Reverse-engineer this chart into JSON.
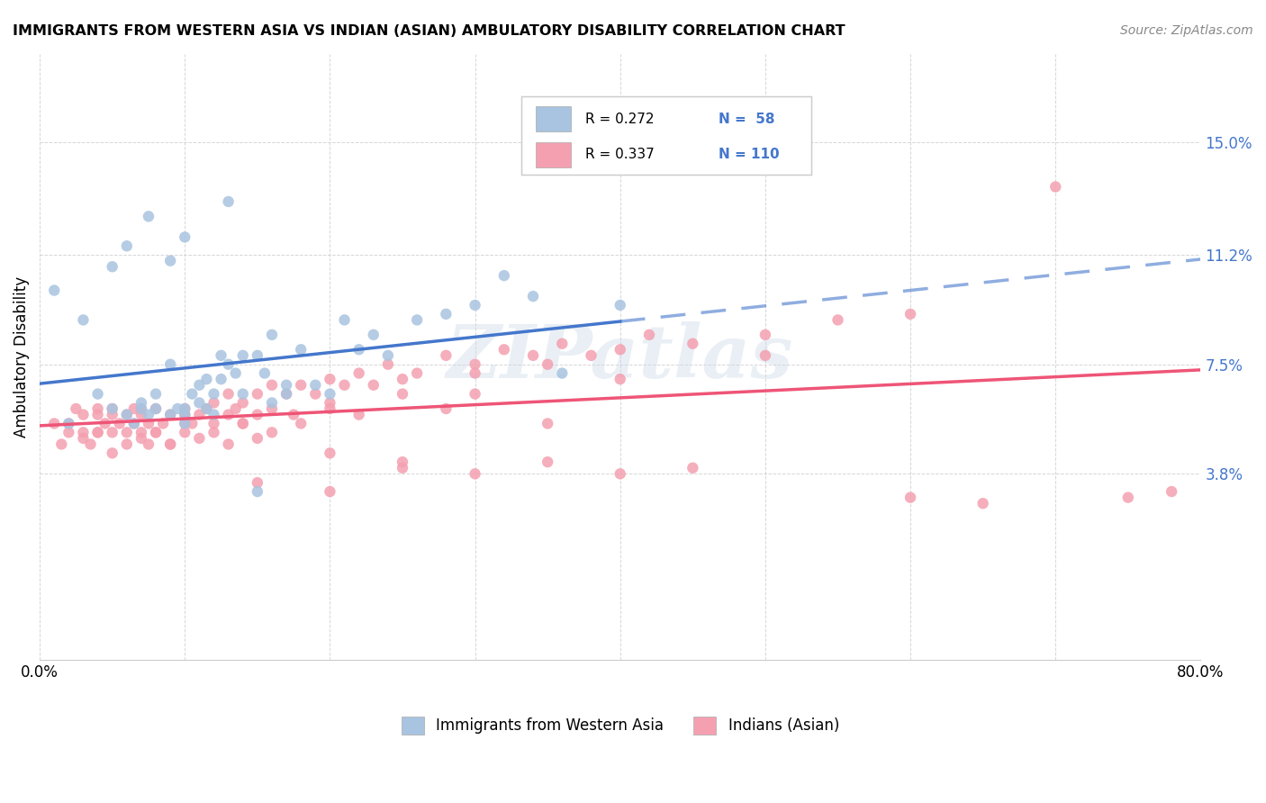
{
  "title": "IMMIGRANTS FROM WESTERN ASIA VS INDIAN (ASIAN) AMBULATORY DISABILITY CORRELATION CHART",
  "source": "Source: ZipAtlas.com",
  "ylabel": "Ambulatory Disability",
  "xlim": [
    0.0,
    0.8
  ],
  "ytick_positions": [
    0.038,
    0.075,
    0.112,
    0.15
  ],
  "ytick_labels": [
    "3.8%",
    "7.5%",
    "11.2%",
    "15.0%"
  ],
  "legend_labels": [
    "Immigrants from Western Asia",
    "Indians (Asian)"
  ],
  "blue_R": "R = 0.272",
  "blue_N": "N =  58",
  "pink_R": "R = 0.337",
  "pink_N": "N = 110",
  "blue_color": "#a8c4e0",
  "pink_color": "#f4a0b0",
  "blue_line_color": "#4477cc",
  "pink_line_color": "#ee5577",
  "watermark": "ZIPatlas",
  "blue_scatter_x": [
    0.02,
    0.04,
    0.05,
    0.06,
    0.065,
    0.07,
    0.07,
    0.075,
    0.08,
    0.08,
    0.09,
    0.09,
    0.095,
    0.1,
    0.1,
    0.1,
    0.105,
    0.11,
    0.11,
    0.115,
    0.115,
    0.12,
    0.12,
    0.125,
    0.125,
    0.13,
    0.135,
    0.14,
    0.14,
    0.15,
    0.155,
    0.16,
    0.16,
    0.17,
    0.18,
    0.19,
    0.2,
    0.21,
    0.22,
    0.23,
    0.24,
    0.26,
    0.28,
    0.3,
    0.32,
    0.34,
    0.36,
    0.4,
    0.01,
    0.03,
    0.05,
    0.06,
    0.075,
    0.09,
    0.1,
    0.13,
    0.15,
    0.17
  ],
  "blue_scatter_y": [
    0.055,
    0.065,
    0.06,
    0.058,
    0.055,
    0.06,
    0.062,
    0.058,
    0.06,
    0.065,
    0.058,
    0.075,
    0.06,
    0.055,
    0.058,
    0.06,
    0.065,
    0.062,
    0.068,
    0.07,
    0.06,
    0.065,
    0.058,
    0.07,
    0.078,
    0.075,
    0.072,
    0.078,
    0.065,
    0.078,
    0.072,
    0.085,
    0.062,
    0.068,
    0.08,
    0.068,
    0.065,
    0.09,
    0.08,
    0.085,
    0.078,
    0.09,
    0.092,
    0.095,
    0.105,
    0.098,
    0.072,
    0.095,
    0.1,
    0.09,
    0.108,
    0.115,
    0.125,
    0.11,
    0.118,
    0.13,
    0.032,
    0.065
  ],
  "pink_scatter_x": [
    0.01,
    0.02,
    0.025,
    0.03,
    0.03,
    0.04,
    0.04,
    0.04,
    0.045,
    0.05,
    0.05,
    0.05,
    0.055,
    0.06,
    0.06,
    0.065,
    0.065,
    0.07,
    0.07,
    0.07,
    0.075,
    0.075,
    0.08,
    0.08,
    0.085,
    0.09,
    0.09,
    0.1,
    0.1,
    0.1,
    0.105,
    0.11,
    0.115,
    0.12,
    0.12,
    0.13,
    0.13,
    0.135,
    0.14,
    0.14,
    0.15,
    0.15,
    0.16,
    0.16,
    0.17,
    0.175,
    0.18,
    0.19,
    0.2,
    0.2,
    0.21,
    0.22,
    0.23,
    0.24,
    0.25,
    0.26,
    0.28,
    0.3,
    0.32,
    0.34,
    0.36,
    0.38,
    0.4,
    0.42,
    0.45,
    0.5,
    0.55,
    0.6,
    0.3,
    0.35,
    0.4,
    0.5,
    0.015,
    0.02,
    0.03,
    0.035,
    0.04,
    0.05,
    0.06,
    0.07,
    0.08,
    0.09,
    0.1,
    0.11,
    0.12,
    0.13,
    0.14,
    0.15,
    0.16,
    0.18,
    0.2,
    0.22,
    0.25,
    0.28,
    0.3,
    0.25,
    0.35,
    0.4,
    0.45,
    0.7,
    0.65,
    0.75,
    0.78,
    0.6,
    0.2,
    0.25,
    0.15,
    0.2,
    0.3,
    0.35
  ],
  "pink_scatter_y": [
    0.055,
    0.055,
    0.06,
    0.058,
    0.052,
    0.06,
    0.058,
    0.052,
    0.055,
    0.058,
    0.052,
    0.06,
    0.055,
    0.058,
    0.052,
    0.06,
    0.055,
    0.058,
    0.052,
    0.06,
    0.055,
    0.048,
    0.06,
    0.052,
    0.055,
    0.058,
    0.048,
    0.058,
    0.052,
    0.06,
    0.055,
    0.058,
    0.06,
    0.062,
    0.055,
    0.065,
    0.058,
    0.06,
    0.062,
    0.055,
    0.065,
    0.058,
    0.068,
    0.06,
    0.065,
    0.058,
    0.068,
    0.065,
    0.07,
    0.062,
    0.068,
    0.072,
    0.068,
    0.075,
    0.07,
    0.072,
    0.078,
    0.075,
    0.08,
    0.078,
    0.082,
    0.078,
    0.08,
    0.085,
    0.082,
    0.085,
    0.09,
    0.092,
    0.072,
    0.075,
    0.07,
    0.078,
    0.048,
    0.052,
    0.05,
    0.048,
    0.052,
    0.045,
    0.048,
    0.05,
    0.052,
    0.048,
    0.055,
    0.05,
    0.052,
    0.048,
    0.055,
    0.05,
    0.052,
    0.055,
    0.06,
    0.058,
    0.065,
    0.06,
    0.065,
    0.04,
    0.042,
    0.038,
    0.04,
    0.135,
    0.028,
    0.03,
    0.032,
    0.03,
    0.045,
    0.042,
    0.035,
    0.032,
    0.038,
    0.055
  ]
}
